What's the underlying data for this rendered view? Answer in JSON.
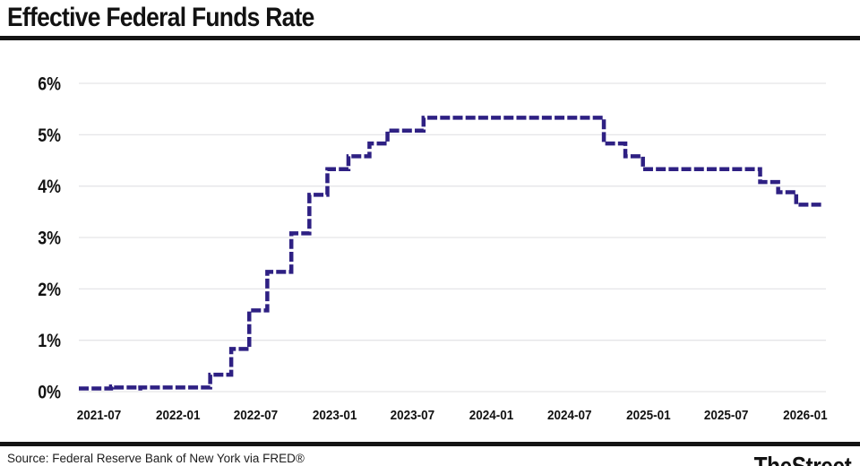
{
  "header": {
    "title": "Effective Federal Funds Rate"
  },
  "footer": {
    "source": "Source: Federal Reserve Bank of New York via FRED®",
    "brand": "TheStreet"
  },
  "colors": {
    "line": "#2e2083",
    "grid": "#e5e5e8",
    "rule": "#141414",
    "tick_text": "#121212"
  },
  "chart_data": {
    "type": "line",
    "interpolation": "step-after",
    "dash_style": "dashed",
    "title": "Effective Federal Funds Rate",
    "xlabel": "",
    "ylabel": "",
    "unit": "percent",
    "ylim": [
      0,
      6
    ],
    "y_ticks": [
      "0%",
      "1%",
      "2%",
      "3%",
      "4%",
      "5%",
      "6%"
    ],
    "x_domain": [
      "2021-05-15",
      "2026-02-10"
    ],
    "x_ticks": [
      "2021-07",
      "2022-01",
      "2022-07",
      "2023-01",
      "2023-07",
      "2024-01",
      "2024-07",
      "2025-01",
      "2025-07",
      "2026-01"
    ],
    "grid": "horizontal",
    "legend": "none",
    "steps_format": "[effective_date, rate_percent]",
    "steps": [
      [
        "2021-05-15",
        0.06
      ],
      [
        "2021-07-29",
        0.1
      ],
      [
        "2021-08-05",
        0.08
      ],
      [
        "2021-09-30",
        0.06
      ],
      [
        "2021-10-05",
        0.08
      ],
      [
        "2022-03-17",
        0.33
      ],
      [
        "2022-05-05",
        0.83
      ],
      [
        "2022-06-16",
        1.58
      ],
      [
        "2022-07-28",
        2.33
      ],
      [
        "2022-09-22",
        3.08
      ],
      [
        "2022-11-03",
        3.83
      ],
      [
        "2022-12-15",
        4.33
      ],
      [
        "2023-02-02",
        4.58
      ],
      [
        "2023-03-23",
        4.83
      ],
      [
        "2023-05-04",
        5.08
      ],
      [
        "2023-07-27",
        5.33
      ],
      [
        "2024-09-19",
        4.83
      ],
      [
        "2024-11-08",
        4.58
      ],
      [
        "2024-12-19",
        4.33
      ],
      [
        "2025-09-18",
        4.08
      ],
      [
        "2025-10-30",
        3.88
      ],
      [
        "2025-12-11",
        3.64
      ],
      [
        "2026-02-10",
        3.64
      ]
    ]
  }
}
